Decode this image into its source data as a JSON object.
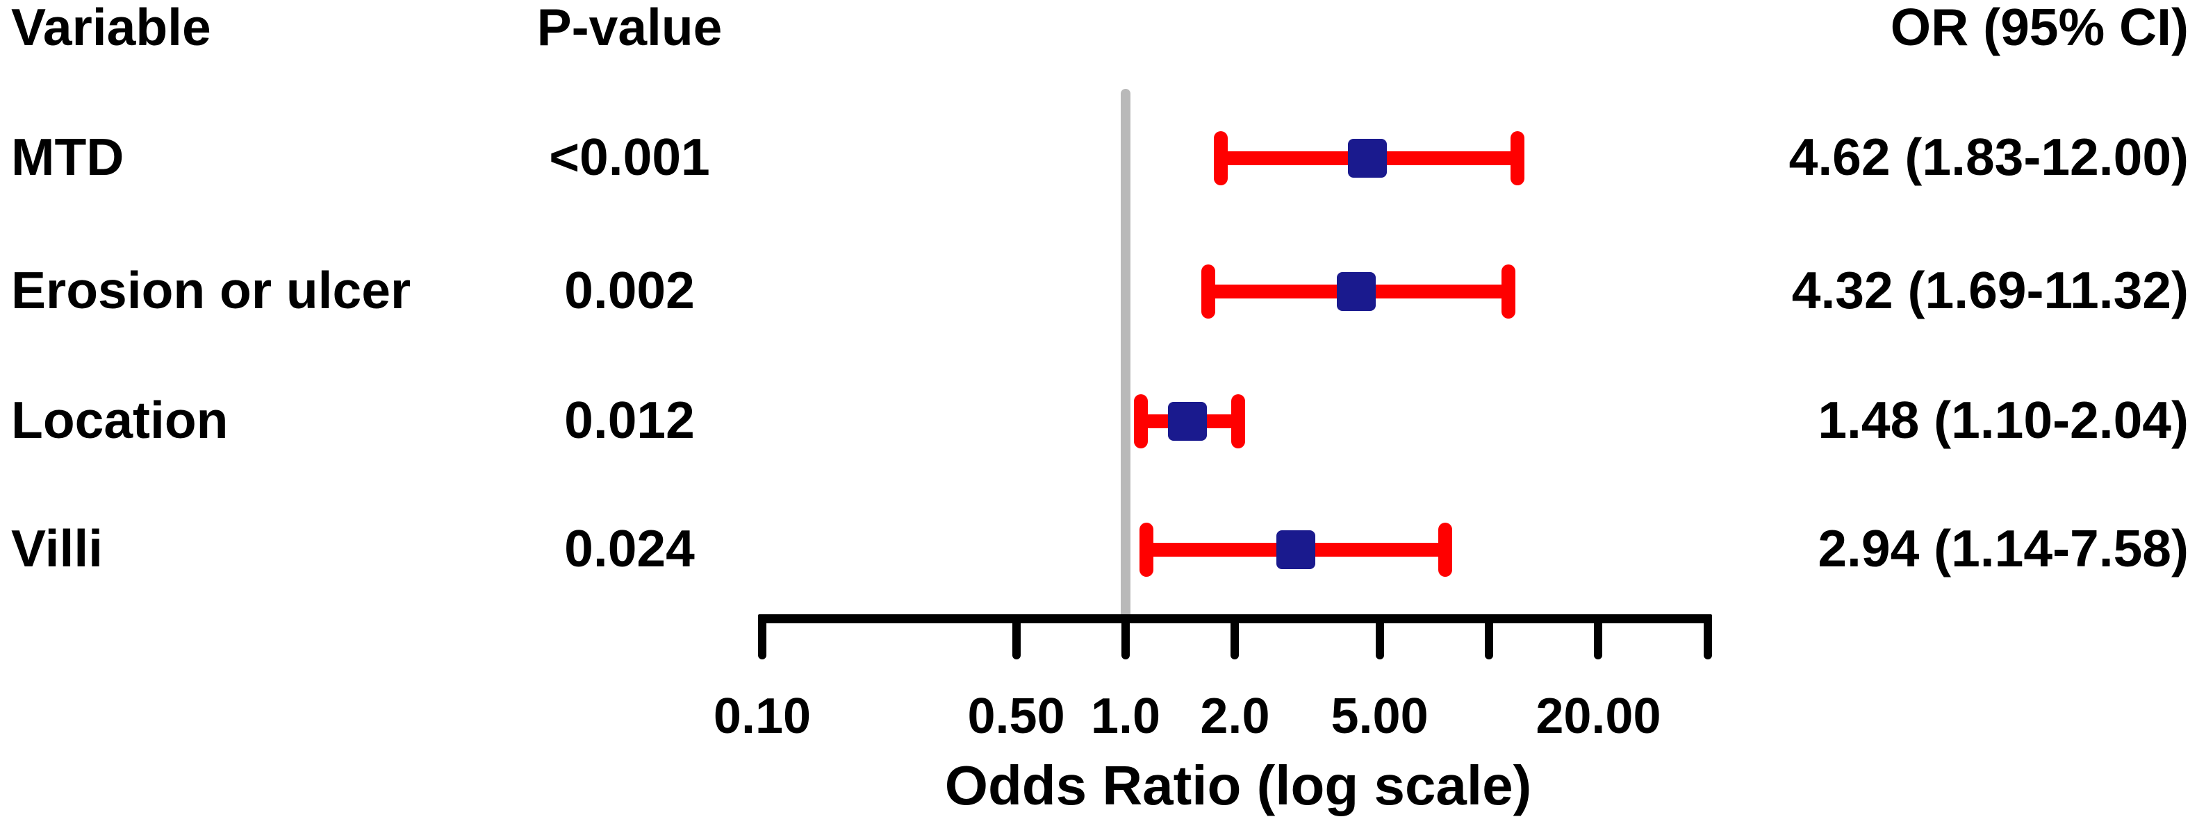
{
  "chart_data": {
    "type": "scatter",
    "subtype": "forest-plot",
    "title": "",
    "xlabel": "Odds Ratio (log scale)",
    "x_scale": "log",
    "xlim": [
      0.1,
      40
    ],
    "reference_line_x": 1.0,
    "grid": false,
    "legend": null,
    "columns": {
      "variable": "Variable",
      "p_value": "P-value",
      "or_ci": "OR (95% CI)"
    },
    "x_ticks": [
      {
        "value": 0.1,
        "label": "0.10"
      },
      {
        "value": 0.5,
        "label": "0.50"
      },
      {
        "value": 1.0,
        "label": "1.0"
      },
      {
        "value": 2.0,
        "label": "2.0"
      },
      {
        "value": 5.0,
        "label": "5.00"
      },
      {
        "value": 10.0,
        "label": ""
      },
      {
        "value": 20.0,
        "label": "20.00"
      },
      {
        "value": 40.0,
        "label": ""
      }
    ],
    "rows": [
      {
        "variable": "MTD",
        "p_value": "<0.001",
        "or": 4.62,
        "ci_low": 1.83,
        "ci_high": 12.0,
        "or_ci_text": "4.62 (1.83-12.00)"
      },
      {
        "variable": "Erosion or ulcer",
        "p_value": "0.002",
        "or": 4.32,
        "ci_low": 1.69,
        "ci_high": 11.32,
        "or_ci_text": "4.32 (1.69-11.32)"
      },
      {
        "variable": "Location",
        "p_value": "0.012",
        "or": 1.48,
        "ci_low": 1.1,
        "ci_high": 2.04,
        "or_ci_text": "1.48 (1.10-2.04)"
      },
      {
        "variable": "Villi",
        "p_value": "0.024",
        "or": 2.94,
        "ci_low": 1.14,
        "ci_high": 7.58,
        "or_ci_text": "2.94 (1.14-7.58)"
      }
    ],
    "colors": {
      "ci_bar": "#FF0000",
      "marker": "#1A1A8E",
      "reference_line": "#B9B9B9",
      "axis": "#000000",
      "text": "#000000",
      "background": "#FFFFFF"
    }
  }
}
